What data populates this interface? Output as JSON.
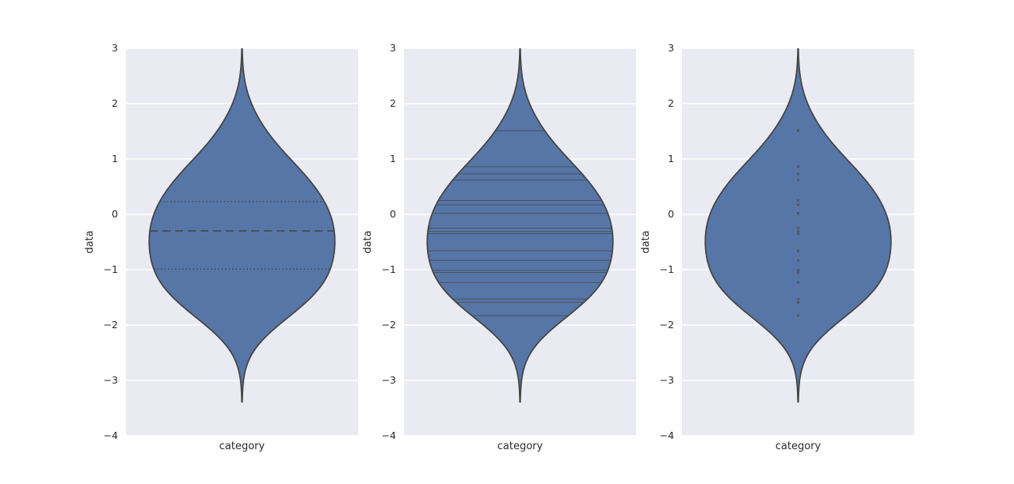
{
  "figure": {
    "background": "#ffffff",
    "panel_background": "#eaeaf2",
    "grid_color": "#ffffff",
    "text_color": "#2b2b2b",
    "violin_fill": "#5776a8",
    "violin_edge": "#454545",
    "inner_line_color": "#4a4a4a",
    "point_color": "#555555"
  },
  "chart_data": {
    "type": "violin",
    "title": "",
    "xlabel": "category",
    "ylabel": "data",
    "categories": [
      "category"
    ],
    "ylim": [
      -4,
      3
    ],
    "yticks": [
      3,
      2,
      1,
      0,
      -1,
      -2,
      -3,
      -4
    ],
    "ytick_labels": [
      "3",
      "2",
      "1",
      "0",
      "−1",
      "−2",
      "−3",
      "−4"
    ],
    "grid": true,
    "legend": "none",
    "values": [
      1.51,
      0.86,
      0.73,
      0.62,
      0.25,
      0.17,
      0.02,
      -0.25,
      -0.31,
      -0.35,
      -0.66,
      -0.83,
      -1.01,
      -1.05,
      -1.23,
      -1.53,
      -1.59,
      -1.83
    ],
    "kde": {
      "bandwidth": 0.52,
      "cut": 3,
      "max_half_width": 0.4
    },
    "quartiles": {
      "q3": 0.23,
      "median": -0.3,
      "q1": -0.99
    },
    "violin_span": {
      "bottom_tip": -3.39,
      "top_clip": 3.0
    },
    "subplots": [
      {
        "inner": "quartile",
        "xlabel": "category",
        "ylabel": "data"
      },
      {
        "inner": "stick",
        "xlabel": "category",
        "ylabel": "data"
      },
      {
        "inner": "point",
        "xlabel": "category",
        "ylabel": "data"
      }
    ]
  }
}
